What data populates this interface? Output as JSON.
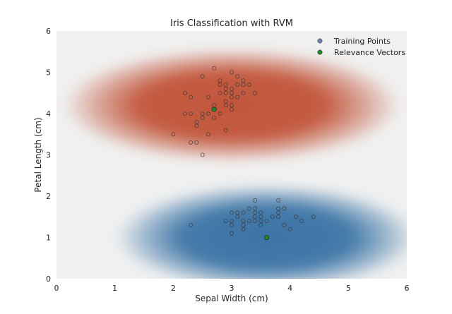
{
  "chart_data": {
    "type": "scatter",
    "title": "Iris Classification with RVM",
    "xlabel": "Sepal Width (cm)",
    "ylabel": "Petal Length (cm)",
    "xlim": [
      0,
      6
    ],
    "ylim": [
      0,
      6
    ],
    "xticks": [
      "0",
      "1",
      "2",
      "3",
      "4",
      "5",
      "6"
    ],
    "yticks": [
      "0",
      "1",
      "2",
      "3",
      "4",
      "5",
      "6"
    ],
    "grid": false,
    "legend_position": "top-right",
    "background_color": "#f0f0f0",
    "colors": {
      "class_upper": "#c2553a",
      "class_lower": "#3b74a6",
      "training_legend_marker": "#6b7db0",
      "relevance_vector": "#1f8a2a"
    },
    "decision_regions": [
      {
        "name": "",
        "color": "#c2553a",
        "center": [
          3.0,
          4.2
        ],
        "span": [
          2.9,
          1.4
        ],
        "side": "upper"
      },
      {
        "name": "",
        "color": "#3b74a6",
        "center": [
          3.6,
          1.0
        ],
        "span": [
          2.6,
          1.3
        ],
        "side": "lower"
      }
    ],
    "series": [
      {
        "name": "Training Points",
        "marker": "hollow-circle",
        "points": [
          [
            2.3,
            1.3
          ],
          [
            2.9,
            1.4
          ],
          [
            3.0,
            1.3
          ],
          [
            3.0,
            1.1
          ],
          [
            3.0,
            1.4
          ],
          [
            3.0,
            1.6
          ],
          [
            3.1,
            1.5
          ],
          [
            3.1,
            1.6
          ],
          [
            3.2,
            1.2
          ],
          [
            3.2,
            1.3
          ],
          [
            3.2,
            1.4
          ],
          [
            3.2,
            1.6
          ],
          [
            3.3,
            1.4
          ],
          [
            3.3,
            1.7
          ],
          [
            3.4,
            1.4
          ],
          [
            3.4,
            1.5
          ],
          [
            3.4,
            1.6
          ],
          [
            3.4,
            1.7
          ],
          [
            3.4,
            1.9
          ],
          [
            3.5,
            1.3
          ],
          [
            3.5,
            1.4
          ],
          [
            3.5,
            1.5
          ],
          [
            3.5,
            1.6
          ],
          [
            3.6,
            1.4
          ],
          [
            3.7,
            1.5
          ],
          [
            3.8,
            1.5
          ],
          [
            3.8,
            1.6
          ],
          [
            3.8,
            1.7
          ],
          [
            3.8,
            1.9
          ],
          [
            3.9,
            1.3
          ],
          [
            3.9,
            1.7
          ],
          [
            4.0,
            1.2
          ],
          [
            4.1,
            1.5
          ],
          [
            4.2,
            1.4
          ],
          [
            4.4,
            1.5
          ],
          [
            2.0,
            3.5
          ],
          [
            2.2,
            4.0
          ],
          [
            2.2,
            4.5
          ],
          [
            2.3,
            3.3
          ],
          [
            2.3,
            4.0
          ],
          [
            2.3,
            4.4
          ],
          [
            2.4,
            3.3
          ],
          [
            2.4,
            3.7
          ],
          [
            2.4,
            3.8
          ],
          [
            2.5,
            3.0
          ],
          [
            2.5,
            3.9
          ],
          [
            2.5,
            4.0
          ],
          [
            2.5,
            4.9
          ],
          [
            2.6,
            3.5
          ],
          [
            2.6,
            4.0
          ],
          [
            2.6,
            4.4
          ],
          [
            2.7,
            3.9
          ],
          [
            2.7,
            4.1
          ],
          [
            2.7,
            4.2
          ],
          [
            2.7,
            5.1
          ],
          [
            2.8,
            4.0
          ],
          [
            2.8,
            4.5
          ],
          [
            2.8,
            4.7
          ],
          [
            2.8,
            4.8
          ],
          [
            2.9,
            3.6
          ],
          [
            2.9,
            4.2
          ],
          [
            2.9,
            4.3
          ],
          [
            2.9,
            4.5
          ],
          [
            2.9,
            4.6
          ],
          [
            2.9,
            4.7
          ],
          [
            3.0,
            4.1
          ],
          [
            3.0,
            4.2
          ],
          [
            3.0,
            4.4
          ],
          [
            3.0,
            4.5
          ],
          [
            3.0,
            4.6
          ],
          [
            3.0,
            5.0
          ],
          [
            3.1,
            4.4
          ],
          [
            3.1,
            4.7
          ],
          [
            3.1,
            4.9
          ],
          [
            3.2,
            4.5
          ],
          [
            3.2,
            4.7
          ],
          [
            3.2,
            4.8
          ],
          [
            3.3,
            4.7
          ],
          [
            3.4,
            4.5
          ]
        ]
      },
      {
        "name": "Relevance Vectors",
        "marker": "filled-circle",
        "points": [
          [
            2.7,
            4.1
          ],
          [
            3.6,
            1.0
          ]
        ]
      }
    ]
  }
}
